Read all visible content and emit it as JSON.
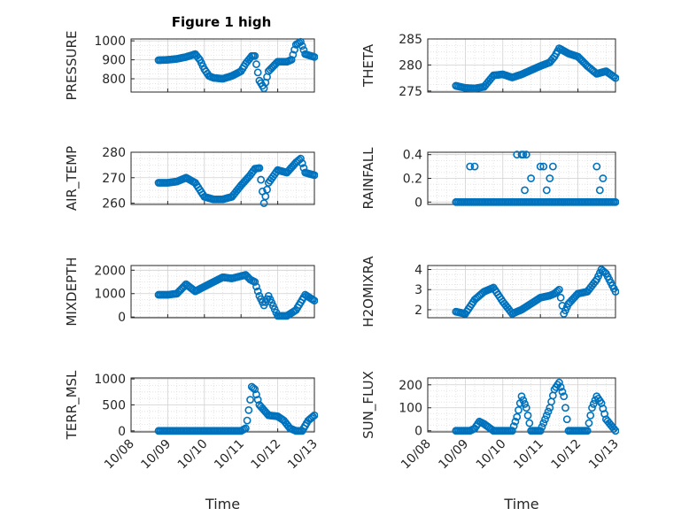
{
  "figure_title": "Figure 1 high",
  "colors": {
    "marker": "#0072BD",
    "axis": "#262626"
  },
  "x_tick_labels": [
    "10/08",
    "10/09",
    "10/10",
    "10/11",
    "10/12",
    "10/13"
  ],
  "chart_data": [
    {
      "id": "pressure",
      "type": "scatter",
      "marker": "circle",
      "ylabel": "PRESSURE",
      "title": "Figure 1 high",
      "xlim": [
        "10/08",
        "10/13"
      ],
      "ylim": [
        730,
        1010
      ],
      "yticks": [
        800,
        900,
        1000
      ],
      "yticklabels": [
        "800",
        "900",
        "1000"
      ],
      "show_x_ticklabels": false,
      "x": [
        "10/08 18:00",
        "10/09 00:00",
        "10/09 06:00",
        "10/09 12:00",
        "10/09 18:00",
        "10/09 21:00",
        "10/10 00:00",
        "10/10 03:00",
        "10/10 06:00",
        "10/10 12:00",
        "10/10 18:00",
        "10/11 00:00",
        "10/11 03:00",
        "10/11 06:00",
        "10/11 07:00",
        "10/11 09:00",
        "10/11 12:00",
        "10/11 15:00",
        "10/11 18:00",
        "10/12 00:00",
        "10/12 06:00",
        "10/12 09:00",
        "10/12 12:00",
        "10/12 15:00",
        "10/12 18:00",
        "10/13 00:00"
      ],
      "y": [
        898,
        900,
        905,
        915,
        930,
        900,
        850,
        815,
        805,
        800,
        815,
        840,
        880,
        910,
        920,
        920,
        790,
        750,
        840,
        890,
        890,
        900,
        980,
        995,
        930,
        915
      ]
    },
    {
      "id": "theta",
      "type": "scatter",
      "marker": "circle",
      "ylabel": "THETA",
      "xlim": [
        "10/08",
        "10/13"
      ],
      "ylim": [
        274.8,
        285
      ],
      "yticks": [
        275,
        280,
        285
      ],
      "yticklabels": [
        "275",
        "280",
        "285"
      ],
      "show_x_ticklabels": false,
      "x": [
        "10/08 18:00",
        "10/09 00:00",
        "10/09 06:00",
        "10/09 12:00",
        "10/09 18:00",
        "10/10 00:00",
        "10/10 06:00",
        "10/10 12:00",
        "10/10 18:00",
        "10/11 00:00",
        "10/11 06:00",
        "10/11 09:00",
        "10/11 12:00",
        "10/11 18:00",
        "10/12 00:00",
        "10/12 06:00",
        "10/12 12:00",
        "10/12 18:00",
        "10/13 00:00"
      ],
      "y": [
        276,
        275.6,
        275.5,
        275.8,
        278,
        278.2,
        277.6,
        278.2,
        279,
        279.8,
        280.5,
        281.6,
        283.2,
        282.2,
        281.6,
        279.8,
        278.3,
        278.8,
        277.5
      ]
    },
    {
      "id": "air_temp",
      "type": "scatter",
      "marker": "circle",
      "ylabel": "AIR_TEMP",
      "xlim": [
        "10/08",
        "10/13"
      ],
      "ylim": [
        259.5,
        280
      ],
      "yticks": [
        260,
        270,
        280
      ],
      "yticklabels": [
        "260",
        "270",
        "280"
      ],
      "show_x_ticklabels": false,
      "x": [
        "10/08 18:00",
        "10/09 00:00",
        "10/09 06:00",
        "10/09 12:00",
        "10/09 18:00",
        "10/10 00:00",
        "10/10 06:00",
        "10/10 12:00",
        "10/10 18:00",
        "10/11 00:00",
        "10/11 06:00",
        "10/11 09:00",
        "10/11 12:00",
        "10/11 15:00",
        "10/11 18:00",
        "10/12 00:00",
        "10/12 06:00",
        "10/12 12:00",
        "10/12 15:00",
        "10/12 18:00",
        "10/13 00:00"
      ],
      "y": [
        268,
        268,
        268.5,
        270,
        268,
        262.5,
        261.5,
        261.5,
        262.5,
        267,
        271,
        273.5,
        273.8,
        260,
        268,
        273,
        272,
        276,
        277.5,
        272,
        271
      ]
    },
    {
      "id": "rainfall",
      "type": "scatter",
      "marker": "circle",
      "ylabel": "RAINFALL",
      "xlim": [
        "10/08",
        "10/13"
      ],
      "ylim": [
        -0.02,
        0.42
      ],
      "yticks": [
        0,
        0.2,
        0.4
      ],
      "yticklabels": [
        "0",
        "0.2",
        "0.4"
      ],
      "show_x_ticklabels": false,
      "x": [
        "10/09 03:00",
        "10/09 06:00",
        "10/10 09:00",
        "10/10 12:00",
        "10/10 13:00",
        "10/10 14:00",
        "10/10 15:00",
        "10/10 18:00",
        "10/11 00:00",
        "10/11 02:00",
        "10/11 04:00",
        "10/11 06:00",
        "10/11 08:00",
        "10/12 12:00",
        "10/12 14:00",
        "10/12 16:00"
      ],
      "y": [
        0.3,
        0.3,
        0.4,
        0.4,
        0.4,
        0.1,
        0.4,
        0.2,
        0.3,
        0.3,
        0.1,
        0.2,
        0.3,
        0.3,
        0.1,
        0.2
      ],
      "zero_ranges": [
        [
          "10/08 18:00",
          "10/13 00:00"
        ]
      ]
    },
    {
      "id": "mixdepth",
      "type": "scatter",
      "marker": "circle",
      "ylabel": "MIXDEPTH",
      "xlim": [
        "10/08",
        "10/13"
      ],
      "ylim": [
        -30,
        2200
      ],
      "yticks": [
        0,
        1000,
        2000
      ],
      "yticklabels": [
        "0",
        "1000",
        "2000"
      ],
      "show_x_ticklabels": false,
      "x": [
        "10/08 18:00",
        "10/09 00:00",
        "10/09 06:00",
        "10/09 12:00",
        "10/09 18:00",
        "10/10 00:00",
        "10/10 06:00",
        "10/10 12:00",
        "10/10 18:00",
        "10/11 00:00",
        "10/11 03:00",
        "10/11 06:00",
        "10/11 09:00",
        "10/11 12:00",
        "10/11 15:00",
        "10/11 18:00",
        "10/12 00:00",
        "10/12 06:00",
        "10/12 12:00",
        "10/12 18:00",
        "10/13 00:00"
      ],
      "y": [
        950,
        950,
        1000,
        1400,
        1100,
        1300,
        1500,
        1700,
        1650,
        1750,
        1800,
        1600,
        1500,
        900,
        500,
        900,
        50,
        50,
        300,
        950,
        700
      ]
    },
    {
      "id": "h2omixra",
      "type": "scatter",
      "marker": "circle",
      "ylabel": "H2OMIXRA",
      "xlim": [
        "10/08",
        "10/13"
      ],
      "ylim": [
        1.6,
        4.2
      ],
      "yticks": [
        2,
        3,
        4
      ],
      "yticklabels": [
        "2",
        "3",
        "4"
      ],
      "show_x_ticklabels": false,
      "x": [
        "10/08 18:00",
        "10/09 00:00",
        "10/09 06:00",
        "10/09 12:00",
        "10/09 18:00",
        "10/10 00:00",
        "10/10 06:00",
        "10/10 12:00",
        "10/10 18:00",
        "10/11 00:00",
        "10/11 06:00",
        "10/11 09:00",
        "10/11 12:00",
        "10/11 15:00",
        "10/11 18:00",
        "10/12 00:00",
        "10/12 06:00",
        "10/12 12:00",
        "10/12 15:00",
        "10/12 18:00",
        "10/13 00:00"
      ],
      "y": [
        1.9,
        1.8,
        2.5,
        2.9,
        3.1,
        2.4,
        1.8,
        2.0,
        2.3,
        2.6,
        2.7,
        2.8,
        3.0,
        1.8,
        2.3,
        2.8,
        2.9,
        3.5,
        4.0,
        3.8,
        2.9
      ]
    },
    {
      "id": "terr_msl",
      "type": "scatter",
      "marker": "circle",
      "ylabel": "TERR_MSL",
      "xlim": [
        "10/08",
        "10/13"
      ],
      "ylim": [
        -20,
        1020
      ],
      "yticks": [
        0,
        500,
        1000
      ],
      "yticklabels": [
        "0",
        "500",
        "1000"
      ],
      "show_x_ticklabels": true,
      "xlabel": "Time",
      "x": [
        "10/08 18:00",
        "10/10 12:00",
        "10/11 00:00",
        "10/11 03:00",
        "10/11 04:00",
        "10/11 06:00",
        "10/11 07:00",
        "10/11 09:00",
        "10/11 12:00",
        "10/11 15:00",
        "10/11 18:00",
        "10/12 00:00",
        "10/12 04:00",
        "10/12 08:00",
        "10/12 12:00",
        "10/12 16:00",
        "10/12 20:00",
        "10/13 00:00"
      ],
      "y": [
        0,
        0,
        0,
        50,
        200,
        600,
        850,
        800,
        500,
        400,
        300,
        280,
        200,
        50,
        0,
        0,
        200,
        300
      ]
    },
    {
      "id": "sun_flux",
      "type": "scatter",
      "marker": "circle",
      "ylabel": "SUN_FLUX",
      "xlim": [
        "10/08",
        "10/13"
      ],
      "ylim": [
        -5,
        230
      ],
      "yticks": [
        0,
        100,
        200
      ],
      "yticklabels": [
        "0",
        "100",
        "200"
      ],
      "show_x_ticklabels": true,
      "xlabel": "Time",
      "x": [
        "10/08 18:00",
        "10/09 03:00",
        "10/09 06:00",
        "10/09 09:00",
        "10/09 12:00",
        "10/09 18:00",
        "10/10 00:00",
        "10/10 06:00",
        "10/10 09:00",
        "10/10 12:00",
        "10/10 15:00",
        "10/10 18:00",
        "10/11 00:00",
        "10/11 06:00",
        "10/11 09:00",
        "10/11 12:00",
        "10/11 15:00",
        "10/11 18:00",
        "10/12 00:00",
        "10/12 06:00",
        "10/12 09:00",
        "10/12 12:00",
        "10/12 15:00",
        "10/12 18:00",
        "10/13 00:00"
      ],
      "y": [
        0,
        0,
        10,
        40,
        30,
        0,
        0,
        0,
        60,
        150,
        100,
        0,
        0,
        100,
        180,
        210,
        150,
        0,
        0,
        0,
        100,
        150,
        120,
        50,
        0
      ]
    }
  ]
}
